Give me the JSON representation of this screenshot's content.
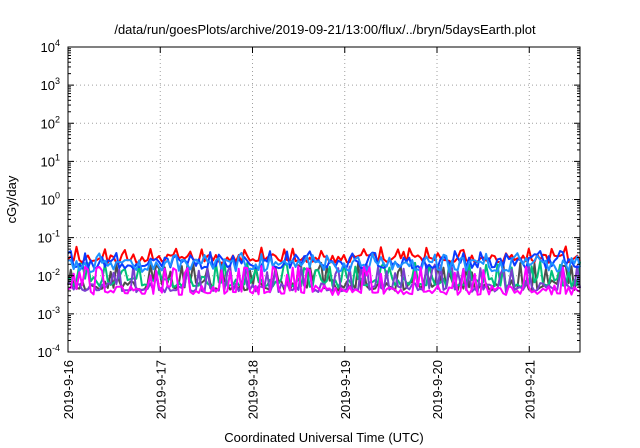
{
  "chart_data": {
    "type": "line",
    "title": "/data/run/goesPlots/archive/2019-09-21/13:00/flux/../bryn/5daysEarth.plot",
    "xlabel": "Coordinated Universal Time (UTC)",
    "ylabel": "cGy/day",
    "y_scale": "log",
    "ylim": [
      0.0001,
      10000
    ],
    "xlim": [
      0,
      5.55
    ],
    "x_unit": "days since 2019-9-16 00:00",
    "grid": true,
    "legend": "none",
    "y_ticks": [
      {
        "value": 0.0001,
        "base": "10",
        "exp": "-4"
      },
      {
        "value": 0.001,
        "base": "10",
        "exp": "-3"
      },
      {
        "value": 0.01,
        "base": "10",
        "exp": "-2"
      },
      {
        "value": 0.1,
        "base": "10",
        "exp": "-1"
      },
      {
        "value": 1,
        "base": "10",
        "exp": "0"
      },
      {
        "value": 10,
        "base": "10",
        "exp": "1"
      },
      {
        "value": 100,
        "base": "10",
        "exp": "2"
      },
      {
        "value": 1000,
        "base": "10",
        "exp": "3"
      },
      {
        "value": 10000,
        "base": "10",
        "exp": "4"
      }
    ],
    "x_ticks": [
      {
        "value": 0,
        "label": "2019-9-16"
      },
      {
        "value": 1,
        "label": "2019-9-17"
      },
      {
        "value": 2,
        "label": "2019-9-18"
      },
      {
        "value": 3,
        "label": "2019-9-19"
      },
      {
        "value": 4,
        "label": "2019-9-20"
      },
      {
        "value": 5,
        "label": "2019-9-21"
      }
    ],
    "series": [
      {
        "color": "#4d4d4d",
        "base": 0.0062,
        "dip": 0.0045,
        "peak": 0.022,
        "seed": 11
      },
      {
        "color": "#00c07a",
        "base": 0.0075,
        "dip": 0.0055,
        "peak": 0.024,
        "seed": 23
      },
      {
        "color": "#7a3fd0",
        "base": 0.0052,
        "dip": 0.004,
        "peak": 0.02,
        "seed": 37
      },
      {
        "color": "#ff0000",
        "base": 0.03,
        "dip": 0.024,
        "peak": 0.06,
        "seed": 41
      },
      {
        "color": "#0a3bff",
        "base": 0.024,
        "dip": 0.017,
        "peak": 0.045,
        "seed": 53
      },
      {
        "color": "#1e90ff",
        "base": 0.021,
        "dip": 0.014,
        "peak": 0.04,
        "seed": 67
      },
      {
        "color": "#ff00ff",
        "base": 0.0045,
        "dip": 0.0035,
        "peak": 0.018,
        "seed": 79
      }
    ]
  }
}
